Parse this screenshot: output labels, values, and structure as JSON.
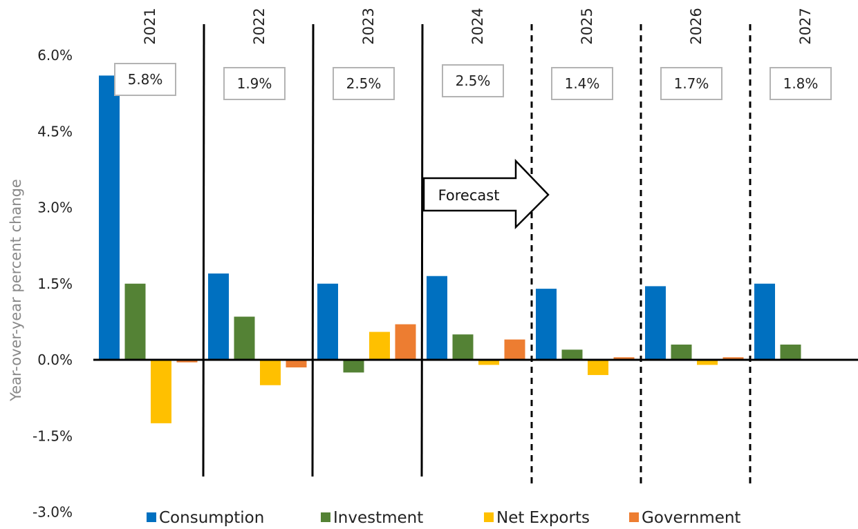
{
  "chart_data": {
    "type": "bar",
    "title": "",
    "xlabel": "",
    "ylabel": "Year-over-year percent change",
    "ylim": [
      -3.0,
      6.5
    ],
    "yticks": [
      "-3.0%",
      "-1.5%",
      "0.0%",
      "1.5%",
      "3.0%",
      "4.5%",
      "6.0%"
    ],
    "categories": [
      "2021",
      "2022",
      "2023",
      "2024",
      "2025",
      "2026",
      "2027"
    ],
    "totals": [
      "5.8%",
      "1.9%",
      "2.5%",
      "2.5%",
      "1.4%",
      "1.7%",
      "1.8%"
    ],
    "forecast_label": "Forecast",
    "forecast_start_index": 4,
    "legend_position": "bottom",
    "series": [
      {
        "name": "Consumption",
        "color": "#0070c0",
        "values": [
          5.6,
          1.7,
          1.5,
          1.65,
          1.4,
          1.45,
          1.5
        ]
      },
      {
        "name": "Investment",
        "color": "#548235",
        "values": [
          1.5,
          0.85,
          -0.25,
          0.5,
          0.2,
          0.3,
          0.3
        ]
      },
      {
        "name": "Net Exports",
        "color": "#ffc000",
        "values": [
          -1.25,
          -0.5,
          0.55,
          -0.1,
          -0.3,
          -0.1,
          null
        ]
      },
      {
        "name": "Government",
        "color": "#ed7d31",
        "values": [
          -0.05,
          -0.15,
          0.7,
          0.4,
          0.05,
          0.05,
          null
        ]
      }
    ]
  }
}
